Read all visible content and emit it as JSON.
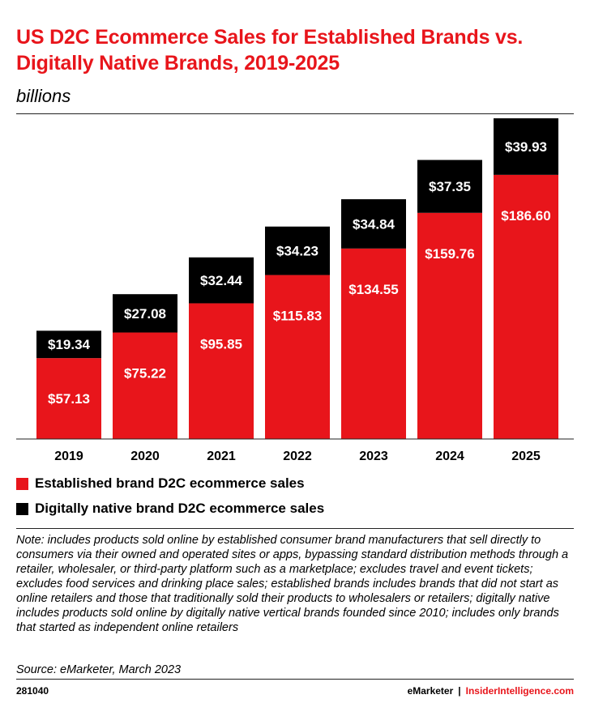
{
  "header": {
    "title": "US D2C Ecommerce Sales for Established Brands vs. Digitally Native Brands, 2019-2025",
    "subtitle": "billions"
  },
  "colors": {
    "established": "#e8151b",
    "native": "#000000",
    "title": "#e8151b"
  },
  "chart_data": {
    "type": "bar",
    "stacked": true,
    "title": "US D2C Ecommerce Sales for Established Brands vs. Digitally Native Brands, 2019-2025",
    "subtitle": "billions",
    "categories": [
      "2019",
      "2020",
      "2021",
      "2022",
      "2023",
      "2024",
      "2025"
    ],
    "series": [
      {
        "name": "Established brand D2C ecommerce sales",
        "values": [
          57.13,
          75.22,
          95.85,
          115.83,
          134.55,
          159.76,
          186.6
        ],
        "labels": [
          "$57.13",
          "$75.22",
          "$95.85",
          "$115.83",
          "$134.55",
          "$159.76",
          "$186.60"
        ]
      },
      {
        "name": "Digitally native brand D2C ecommerce sales",
        "values": [
          19.34,
          27.08,
          32.44,
          34.23,
          34.84,
          37.35,
          39.93
        ],
        "labels": [
          "$19.34",
          "$27.08",
          "$32.44",
          "$34.23",
          "$34.84",
          "$37.35",
          "$39.93"
        ]
      }
    ],
    "ylim": [
      0,
      230
    ],
    "grid": false,
    "legend_position": "bottom-left"
  },
  "legend": [
    "Established brand D2C ecommerce sales",
    "Digitally native brand D2C ecommerce sales"
  ],
  "note": "Note: includes products sold online by established consumer brand manufacturers that sell directly to consumers via their owned and operated sites or apps, bypassing standard distribution methods through a retailer, wholesaler, or third-party platform such as a marketplace; excludes travel and event tickets; excludes food services and drinking place sales; established brands includes brands that did not start as online retailers and those that traditionally sold their products to wholesalers or retailers; digitally native includes products sold online by digitally native vertical brands founded since 2010; includes only brands that started as independent online retailers",
  "source": "Source: eMarketer, March 2023",
  "footer": {
    "id": "281040",
    "brand1": "eMarketer",
    "separator": "|",
    "brand2": "InsiderIntelligence.com"
  }
}
